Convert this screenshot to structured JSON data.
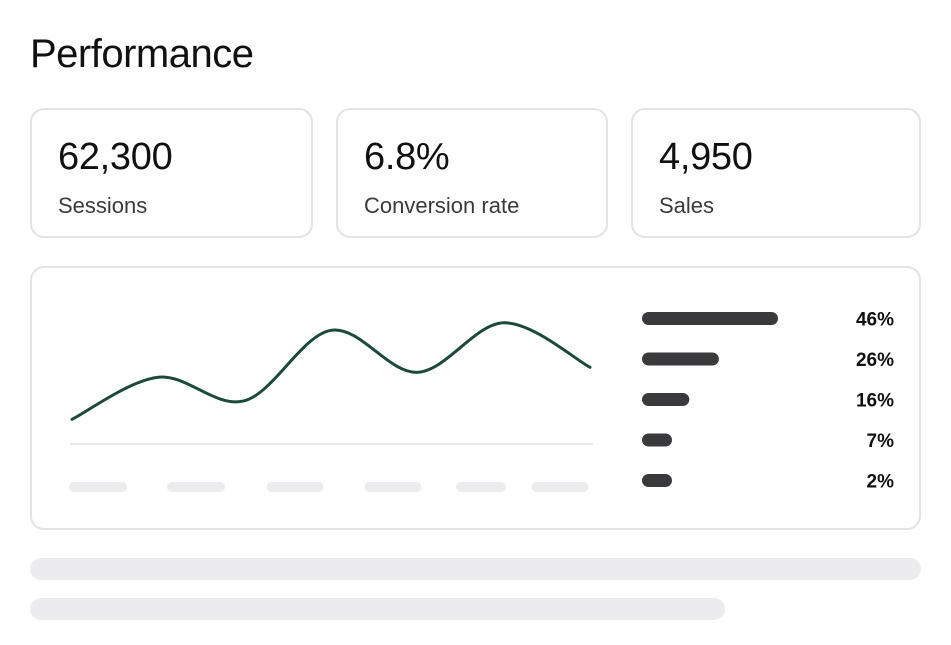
{
  "page": {
    "title": "Performance"
  },
  "kpis": [
    {
      "value": "62,300",
      "label": "Sessions"
    },
    {
      "value": "6.8%",
      "label": "Conversion rate"
    },
    {
      "value": "4,950",
      "label": "Sales"
    }
  ],
  "colors": {
    "line": "#1c4a3a",
    "bar": "#3a3a3c",
    "card_border": "#e3e3e6",
    "skeleton": "#ececee"
  },
  "chart_data": [
    {
      "type": "line",
      "x": [
        1,
        2,
        3,
        4,
        5,
        6,
        7
      ],
      "values": [
        20,
        54,
        35,
        92,
        58,
        98,
        62
      ],
      "ylim": [
        0,
        110
      ],
      "xlabel": "",
      "ylabel": "",
      "grid": false
    },
    {
      "type": "bar",
      "orientation": "horizontal",
      "values": [
        46,
        26,
        16,
        7,
        2
      ],
      "value_labels": [
        "46%",
        "26%",
        "16%",
        "7%",
        "2%"
      ]
    }
  ]
}
